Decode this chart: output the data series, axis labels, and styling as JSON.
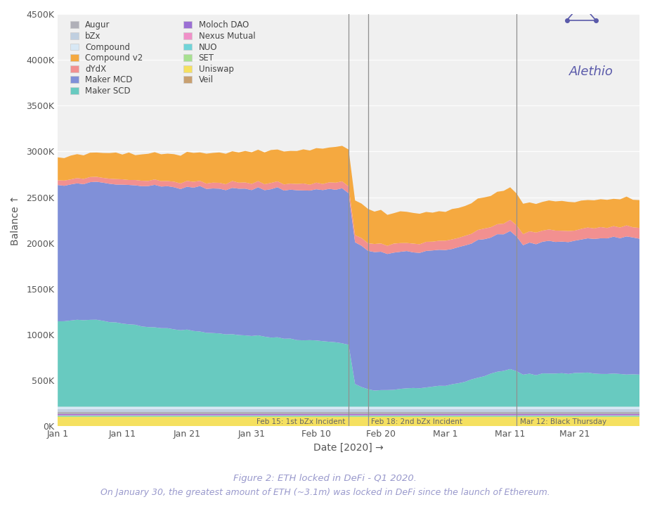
{
  "title": "Figure 2: ETH locked in DeFi - Q1 2020.",
  "subtitle": "On January 30, the greatest amount of ETH (~3.1m) was locked in DeFi since the launch of Ethereum.",
  "xlabel": "Date [2020] →",
  "ylabel": "Balance ↑",
  "background_color": "#ffffff",
  "plot_bg_color": "#f0f0f0",
  "yticks": [
    0,
    500000,
    1000000,
    1500000,
    2000000,
    2500000,
    3000000,
    3500000,
    4000000,
    4500000
  ],
  "xtick_positions": [
    0,
    10,
    20,
    30,
    40,
    50,
    60,
    70,
    80
  ],
  "xtick_labels": [
    "Jan 1",
    "Jan 11",
    "Jan 21",
    "Jan 31",
    "Feb 10",
    "Feb 20",
    "Mar 1",
    "Mar 11",
    "Mar 21"
  ],
  "event_lines": [
    45,
    48,
    71
  ],
  "event_labels": [
    "Feb 15: 1st bZx Incident",
    "Feb 18: 2nd bZx Incident",
    "Mar 12: Black Thursday"
  ],
  "legend_left": [
    [
      "Augur",
      "#b0b0b8"
    ],
    [
      "bZx",
      "#c0cfe0"
    ],
    [
      "Compound",
      "#d8e8f5"
    ],
    [
      "Compound v2",
      "#f5a940"
    ],
    [
      "dYdX",
      "#f29090"
    ],
    [
      "Maker MCD",
      "#8090d8"
    ],
    [
      "Maker SCD",
      "#68cac0"
    ]
  ],
  "legend_right": [
    [
      "Moloch DAO",
      "#9b6fd4"
    ],
    [
      "Nexus Mutual",
      "#f090c8"
    ],
    [
      "NUO",
      "#70d4d8"
    ],
    [
      "SET",
      "#a8e090"
    ],
    [
      "Uniswap",
      "#f5e060"
    ],
    [
      "Veil",
      "#c8a070"
    ]
  ],
  "alethio_text": "Alethio",
  "alethio_color": "#5a5aaa",
  "caption_color": "#9999cc",
  "caption_fontsize": 9.5
}
